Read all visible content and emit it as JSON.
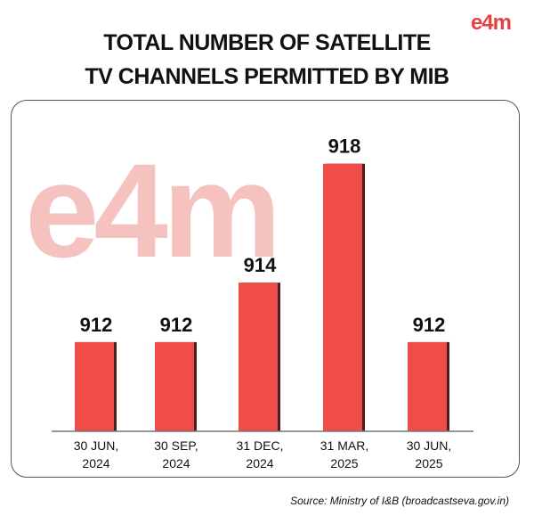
{
  "logo_text": "e4m",
  "watermark_text": "e4m",
  "colors": {
    "bar": "#ef4c4a",
    "bar_shadow": "#4a1f1f",
    "logo": "#e8403d",
    "watermark": "#f4b8b4"
  },
  "chart_data": {
    "type": "bar",
    "title": "TOTAL NUMBER OF SATELLITE TV CHANNELS PERMITTED BY MIB",
    "title_lines": [
      "TOTAL NUMBER OF SATELLITE",
      "TV CHANNELS PERMITTED BY MIB"
    ],
    "categories": [
      [
        "30 JUN,",
        "2024"
      ],
      [
        "30 SEP,",
        "2024"
      ],
      [
        "31 DEC,",
        "2024"
      ],
      [
        "31 MAR,",
        "2025"
      ],
      [
        "30 JUN,",
        "2025"
      ]
    ],
    "values": [
      912,
      912,
      914,
      918,
      912
    ],
    "data_labels": [
      "912",
      "912",
      "914",
      "918",
      "912"
    ],
    "ylim": [
      909,
      920
    ],
    "grid": false,
    "xlabel": "",
    "ylabel": ""
  },
  "source": "Source: Ministry of I&B (broadcastseva.gov.in)"
}
